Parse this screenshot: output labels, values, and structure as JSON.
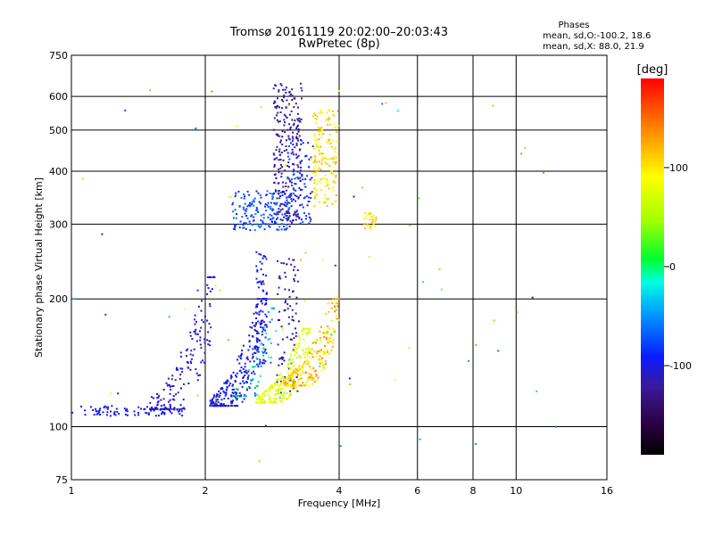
{
  "chart_data": {
    "type": "scatter",
    "title": "Tromsø 20161119 20:02:00–20:03:43",
    "subtitle": "RwPretec (8p)",
    "xlabel": "Frequency [MHz]",
    "ylabel": "Stationary phase Virtual Height [km]",
    "xscale": "log",
    "yscale": "log",
    "xlim": [
      1,
      16
    ],
    "ylim": [
      75,
      750
    ],
    "xticks": [
      "1",
      "2",
      "4",
      "6",
      "8",
      "10",
      "16"
    ],
    "yticks": [
      "75",
      "100",
      "200",
      "300",
      "400",
      "500",
      "600",
      "750"
    ],
    "grid": true,
    "phases": {
      "title": "Phases",
      "line1": "mean, sd,O:-100.2, 18.6",
      "line2": "mean, sd,X:  88.0, 21.9"
    },
    "colorbar": {
      "label": "[deg]",
      "range": [
        -190,
        190
      ],
      "ticks": [
        "100",
        "0",
        "-100"
      ],
      "tick_values": [
        100,
        0,
        -100
      ]
    },
    "clusters": [
      {
        "freq": [
          1.0,
          1.8
        ],
        "height": [
          106,
          112
        ],
        "phase": [
          -115,
          -90
        ],
        "count": 90,
        "shape": "flat"
      },
      {
        "freq": [
          1.5,
          2.1
        ],
        "height": [
          110,
          225
        ],
        "phase": [
          -120,
          -95
        ],
        "count": 170,
        "shape": "rise"
      },
      {
        "freq": [
          2.05,
          2.75
        ],
        "height": [
          112,
          200
        ],
        "phase": [
          -115,
          -85
        ],
        "count": 260,
        "shape": "rise"
      },
      {
        "freq": [
          2.6,
          2.75
        ],
        "height": [
          140,
          260
        ],
        "phase": [
          -110,
          -90
        ],
        "count": 70,
        "shape": "column"
      },
      {
        "freq": [
          2.3,
          2.9
        ],
        "height": [
          118,
          190
        ],
        "phase": [
          -80,
          20
        ],
        "count": 60,
        "shape": "rise"
      },
      {
        "freq": [
          2.9,
          3.25
        ],
        "height": [
          120,
          250
        ],
        "phase": [
          -135,
          -105
        ],
        "count": 90,
        "shape": "column"
      },
      {
        "freq": [
          2.6,
          3.45
        ],
        "height": [
          114,
          170
        ],
        "phase": [
          60,
          95
        ],
        "count": 230,
        "shape": "rise"
      },
      {
        "freq": [
          3.0,
          4.0
        ],
        "height": [
          125,
          200
        ],
        "phase": [
          85,
          140
        ],
        "count": 220,
        "shape": "rise"
      },
      {
        "freq": [
          2.3,
          3.1
        ],
        "height": [
          290,
          360
        ],
        "phase": [
          -95,
          -55
        ],
        "count": 170,
        "shape": "cloud"
      },
      {
        "freq": [
          2.85,
          3.3
        ],
        "height": [
          300,
          650
        ],
        "phase": [
          -140,
          -105
        ],
        "count": 240,
        "shape": "column"
      },
      {
        "freq": [
          3.05,
          3.5
        ],
        "height": [
          300,
          480
        ],
        "phase": [
          -105,
          -70
        ],
        "count": 90,
        "shape": "cloud"
      },
      {
        "freq": [
          3.5,
          3.95
        ],
        "height": [
          330,
          560
        ],
        "phase": [
          85,
          125
        ],
        "count": 160,
        "shape": "column"
      },
      {
        "freq": [
          4.55,
          4.85
        ],
        "height": [
          290,
          320
        ],
        "phase": [
          90,
          125
        ],
        "count": 28,
        "shape": "cloud"
      },
      {
        "freq": [
          1.0,
          12.5
        ],
        "height": [
          80,
          650
        ],
        "phase": [
          -120,
          150
        ],
        "count": 70,
        "shape": "scatter"
      }
    ]
  }
}
